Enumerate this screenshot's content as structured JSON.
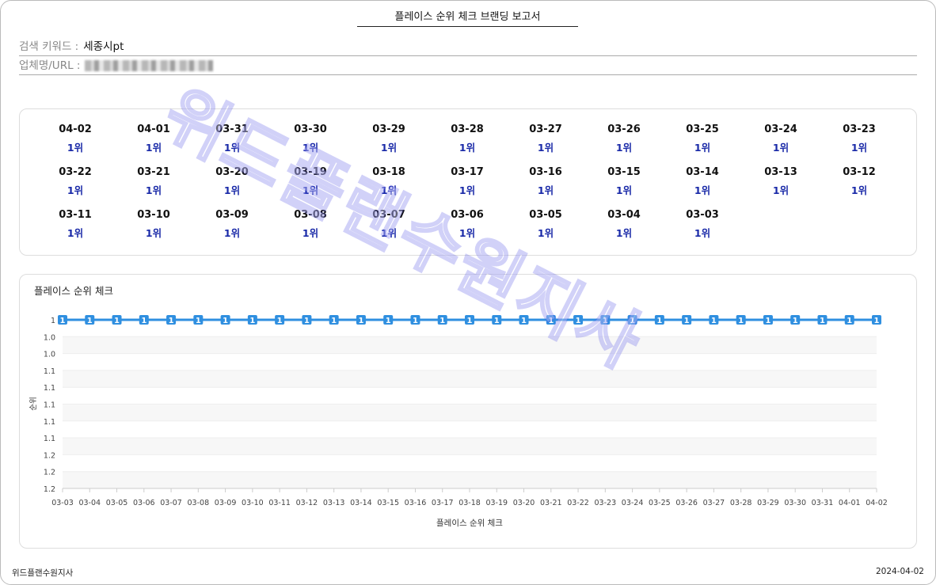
{
  "report_title": "플레이스 순위 체크 브랜딩 보고서",
  "fields": {
    "keyword_label": "검색 키워드 :",
    "keyword_value": "세종시pt",
    "business_label": "업체명/URL :"
  },
  "rank_grid": [
    {
      "date": "04-02",
      "rank": "1위"
    },
    {
      "date": "04-01",
      "rank": "1위"
    },
    {
      "date": "03-31",
      "rank": "1위"
    },
    {
      "date": "03-30",
      "rank": "1위"
    },
    {
      "date": "03-29",
      "rank": "1위"
    },
    {
      "date": "03-28",
      "rank": "1위"
    },
    {
      "date": "03-27",
      "rank": "1위"
    },
    {
      "date": "03-26",
      "rank": "1위"
    },
    {
      "date": "03-25",
      "rank": "1위"
    },
    {
      "date": "03-24",
      "rank": "1위"
    },
    {
      "date": "03-23",
      "rank": "1위"
    },
    {
      "date": "03-22",
      "rank": "1위"
    },
    {
      "date": "03-21",
      "rank": "1위"
    },
    {
      "date": "03-20",
      "rank": "1위"
    },
    {
      "date": "03-19",
      "rank": "1위"
    },
    {
      "date": "03-18",
      "rank": "1위"
    },
    {
      "date": "03-17",
      "rank": "1위"
    },
    {
      "date": "03-16",
      "rank": "1위"
    },
    {
      "date": "03-15",
      "rank": "1위"
    },
    {
      "date": "03-14",
      "rank": "1위"
    },
    {
      "date": "03-13",
      "rank": "1위"
    },
    {
      "date": "03-12",
      "rank": "1위"
    },
    {
      "date": "03-11",
      "rank": "1위"
    },
    {
      "date": "03-10",
      "rank": "1위"
    },
    {
      "date": "03-09",
      "rank": "1위"
    },
    {
      "date": "03-08",
      "rank": "1위"
    },
    {
      "date": "03-07",
      "rank": "1위"
    },
    {
      "date": "03-06",
      "rank": "1위"
    },
    {
      "date": "03-05",
      "rank": "1위"
    },
    {
      "date": "03-04",
      "rank": "1위"
    },
    {
      "date": "03-03",
      "rank": "1위"
    }
  ],
  "chart_data": {
    "type": "line",
    "title": "플레이스 순위 체크",
    "xlabel": "플레이스 순위 체크",
    "ylabel": "순위",
    "categories": [
      "03-03",
      "03-04",
      "03-05",
      "03-06",
      "03-07",
      "03-08",
      "03-09",
      "03-10",
      "03-11",
      "03-12",
      "03-13",
      "03-14",
      "03-15",
      "03-16",
      "03-17",
      "03-18",
      "03-19",
      "03-20",
      "03-21",
      "03-22",
      "03-23",
      "03-24",
      "03-25",
      "03-26",
      "03-27",
      "03-28",
      "03-29",
      "03-30",
      "03-31",
      "04-01",
      "04-02"
    ],
    "series": [
      {
        "values": [
          1,
          1,
          1,
          1,
          1,
          1,
          1,
          1,
          1,
          1,
          1,
          1,
          1,
          1,
          1,
          1,
          1,
          1,
          1,
          1,
          1,
          1,
          1,
          1,
          1,
          1,
          1,
          1,
          1,
          1,
          1
        ],
        "color": "#2f8fe0"
      }
    ],
    "y_reversed": true,
    "y_tick_labels": [
      "1",
      "1.0",
      "1.0",
      "1.1",
      "1.1",
      "1.1",
      "1.1",
      "1.1",
      "1.2",
      "1.2",
      "1.2"
    ],
    "grid": "alternating bands",
    "data_labels": true
  },
  "watermark": "위드플랜수원지사",
  "footer": {
    "left": "위드플랜수원지사",
    "right": "2024-04-02"
  }
}
